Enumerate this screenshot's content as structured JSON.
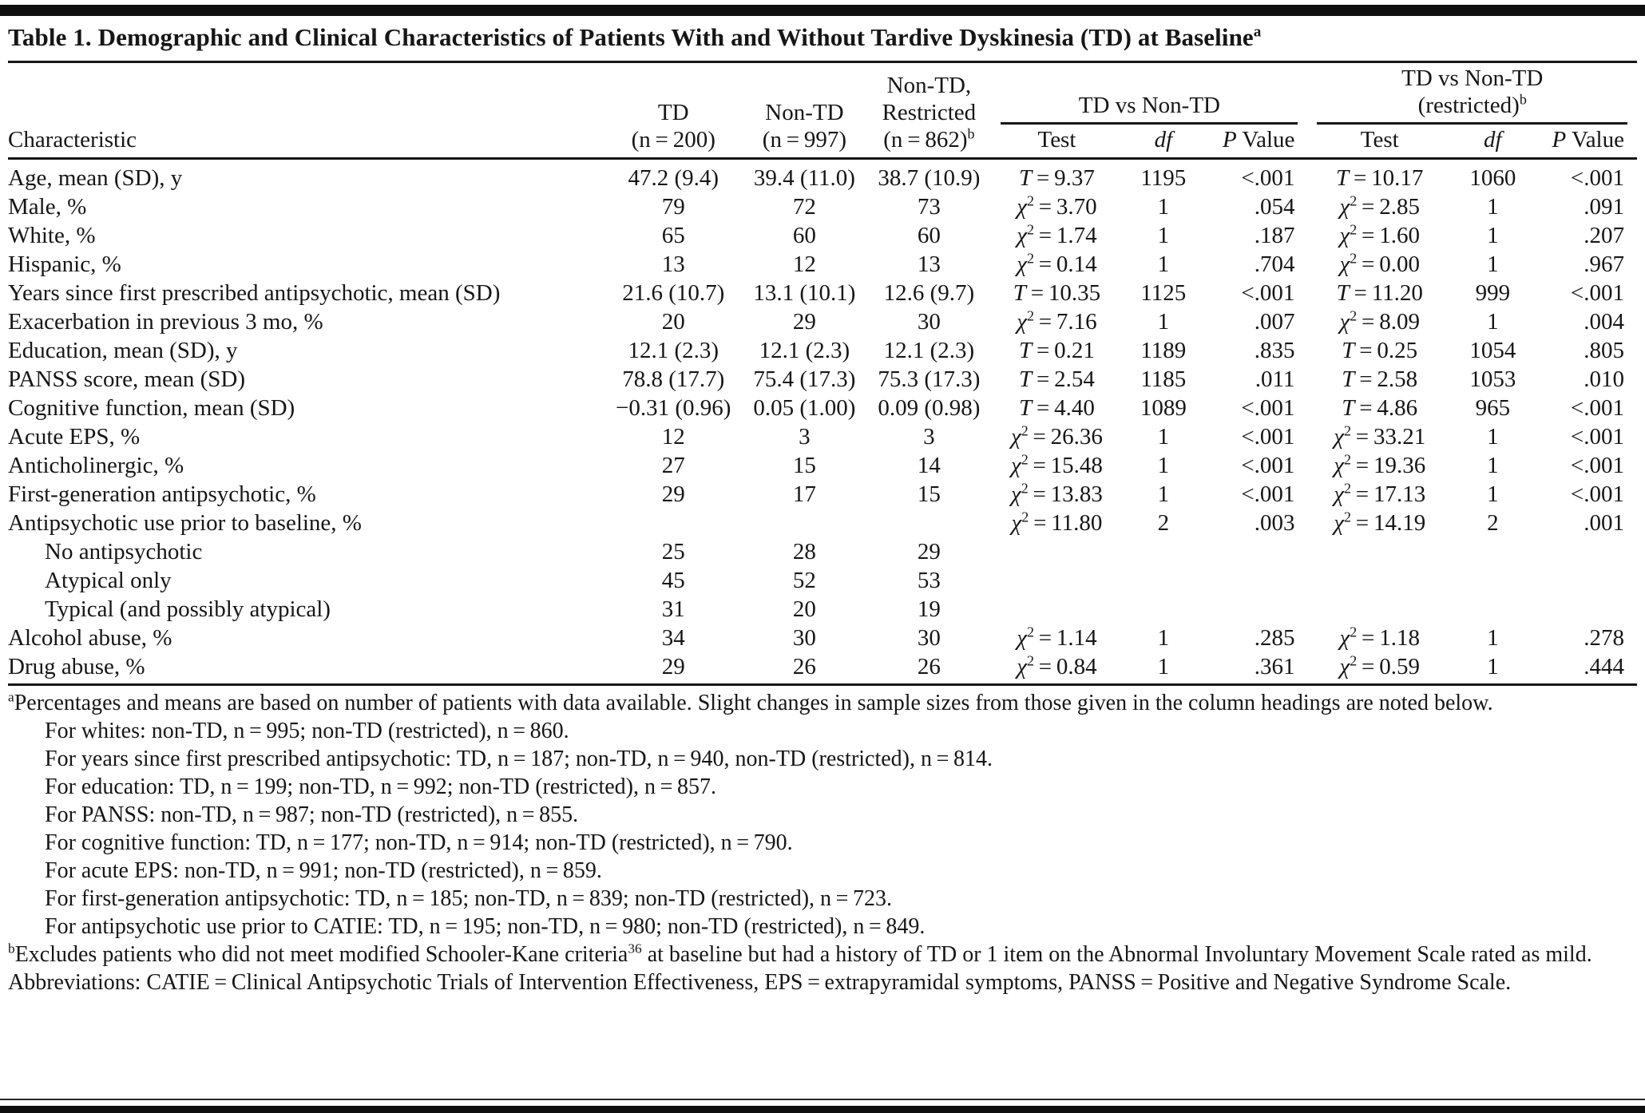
{
  "title": {
    "text": "Table 1. Demographic and Clinical Characteristics of Patients With and Without Tardive Dyskinesia (TD) at Baseline",
    "sup": "a"
  },
  "table": {
    "col_headers": {
      "characteristic": "Characteristic",
      "td_lines": [
        "TD",
        "(n = 200)"
      ],
      "non_td_lines": [
        "Non-TD",
        "(n = 997)"
      ],
      "restricted_lines": [
        "Non-TD,",
        "Restricted",
        "(n = 862)"
      ],
      "restricted_sup": "b",
      "group1_label": "TD vs Non-TD",
      "group2_line1": "TD vs Non-TD",
      "group2_line2": "(restricted)",
      "group2_sup": "b",
      "test_label": "Test",
      "df_label": "df",
      "p_label_italic": "P",
      "p_label_rest": " Value"
    },
    "rows": [
      {
        "label": "Age, mean (SD), y",
        "indent": false,
        "td": "47.2 (9.4)",
        "ntd": "39.4 (11.0)",
        "res": "38.7 (10.9)",
        "s1": {
          "sym": "T",
          "val": "9.37"
        },
        "df1": "1195",
        "p1": "<.001",
        "s2": {
          "sym": "T",
          "val": "10.17"
        },
        "df2": "1060",
        "p2": "<.001"
      },
      {
        "label": "Male, %",
        "indent": false,
        "td": "79",
        "ntd": "72",
        "res": "73",
        "s1": {
          "sym": "χ2",
          "val": "3.70"
        },
        "df1": "1",
        "p1": ".054",
        "s2": {
          "sym": "χ2",
          "val": "2.85"
        },
        "df2": "1",
        "p2": ".091"
      },
      {
        "label": "White, %",
        "indent": false,
        "td": "65",
        "ntd": "60",
        "res": "60",
        "s1": {
          "sym": "χ2",
          "val": "1.74"
        },
        "df1": "1",
        "p1": ".187",
        "s2": {
          "sym": "χ2",
          "val": "1.60"
        },
        "df2": "1",
        "p2": ".207"
      },
      {
        "label": "Hispanic, %",
        "indent": false,
        "td": "13",
        "ntd": "12",
        "res": "13",
        "s1": {
          "sym": "χ2",
          "val": "0.14"
        },
        "df1": "1",
        "p1": ".704",
        "s2": {
          "sym": "χ2",
          "val": "0.00"
        },
        "df2": "1",
        "p2": ".967"
      },
      {
        "label": "Years since first prescribed antipsychotic, mean (SD)",
        "indent": false,
        "td": "21.6 (10.7)",
        "ntd": "13.1 (10.1)",
        "res": "12.6 (9.7)",
        "s1": {
          "sym": "T",
          "val": "10.35"
        },
        "df1": "1125",
        "p1": "<.001",
        "s2": {
          "sym": "T",
          "val": "11.20"
        },
        "df2": "999",
        "p2": "<.001"
      },
      {
        "label": "Exacerbation in previous 3 mo, %",
        "indent": false,
        "td": "20",
        "ntd": "29",
        "res": "30",
        "s1": {
          "sym": "χ2",
          "val": "7.16"
        },
        "df1": "1",
        "p1": ".007",
        "s2": {
          "sym": "χ2",
          "val": "8.09"
        },
        "df2": "1",
        "p2": ".004"
      },
      {
        "label": "Education, mean (SD), y",
        "indent": false,
        "td": "12.1 (2.3)",
        "ntd": "12.1 (2.3)",
        "res": "12.1 (2.3)",
        "s1": {
          "sym": "T",
          "val": "0.21"
        },
        "df1": "1189",
        "p1": ".835",
        "s2": {
          "sym": "T",
          "val": "0.25"
        },
        "df2": "1054",
        "p2": ".805"
      },
      {
        "label": "PANSS score, mean (SD)",
        "indent": false,
        "td": "78.8 (17.7)",
        "ntd": "75.4 (17.3)",
        "res": "75.3 (17.3)",
        "s1": {
          "sym": "T",
          "val": "2.54"
        },
        "df1": "1185",
        "p1": ".011",
        "s2": {
          "sym": "T",
          "val": "2.58"
        },
        "df2": "1053",
        "p2": ".010"
      },
      {
        "label": "Cognitive function, mean (SD)",
        "indent": false,
        "td": "−0.31 (0.96)",
        "ntd": "0.05 (1.00)",
        "res": "0.09 (0.98)",
        "s1": {
          "sym": "T",
          "val": "4.40"
        },
        "df1": "1089",
        "p1": "<.001",
        "s2": {
          "sym": "T",
          "val": "4.86"
        },
        "df2": "965",
        "p2": "<.001"
      },
      {
        "label": "Acute EPS, %",
        "indent": false,
        "td": "12",
        "ntd": "3",
        "res": "3",
        "s1": {
          "sym": "χ2",
          "val": "26.36"
        },
        "df1": "1",
        "p1": "<.001",
        "s2": {
          "sym": "χ2",
          "val": "33.21"
        },
        "df2": "1",
        "p2": "<.001"
      },
      {
        "label": "Anticholinergic, %",
        "indent": false,
        "td": "27",
        "ntd": "15",
        "res": "14",
        "s1": {
          "sym": "χ2",
          "val": "15.48"
        },
        "df1": "1",
        "p1": "<.001",
        "s2": {
          "sym": "χ2",
          "val": "19.36"
        },
        "df2": "1",
        "p2": "<.001"
      },
      {
        "label": "First-generation antipsychotic, %",
        "indent": false,
        "td": "29",
        "ntd": "17",
        "res": "15",
        "s1": {
          "sym": "χ2",
          "val": "13.83"
        },
        "df1": "1",
        "p1": "<.001",
        "s2": {
          "sym": "χ2",
          "val": "17.13"
        },
        "df2": "1",
        "p2": "<.001"
      },
      {
        "label": "Antipsychotic use prior to baseline, %",
        "indent": false,
        "td": "",
        "ntd": "",
        "res": "",
        "s1": {
          "sym": "χ2",
          "val": "11.80"
        },
        "df1": "2",
        "p1": ".003",
        "s2": {
          "sym": "χ2",
          "val": "14.19"
        },
        "df2": "2",
        "p2": ".001"
      },
      {
        "label": "No antipsychotic",
        "indent": true,
        "td": "25",
        "ntd": "28",
        "res": "29",
        "s1": null,
        "df1": "",
        "p1": "",
        "s2": null,
        "df2": "",
        "p2": ""
      },
      {
        "label": "Atypical only",
        "indent": true,
        "td": "45",
        "ntd": "52",
        "res": "53",
        "s1": null,
        "df1": "",
        "p1": "",
        "s2": null,
        "df2": "",
        "p2": ""
      },
      {
        "label": "Typical (and possibly atypical)",
        "indent": true,
        "td": "31",
        "ntd": "20",
        "res": "19",
        "s1": null,
        "df1": "",
        "p1": "",
        "s2": null,
        "df2": "",
        "p2": ""
      },
      {
        "label": "Alcohol abuse, %",
        "indent": false,
        "td": "34",
        "ntd": "30",
        "res": "30",
        "s1": {
          "sym": "χ2",
          "val": "1.14"
        },
        "df1": "1",
        "p1": ".285",
        "s2": {
          "sym": "χ2",
          "val": "1.18"
        },
        "df2": "1",
        "p2": ".278"
      },
      {
        "label": "Drug abuse, %",
        "indent": false,
        "td": "29",
        "ntd": "26",
        "res": "26",
        "s1": {
          "sym": "χ2",
          "val": "0.84"
        },
        "df1": "1",
        "p1": ".361",
        "s2": {
          "sym": "χ2",
          "val": "0.59"
        },
        "df2": "1",
        "p2": ".444"
      }
    ]
  },
  "footnotes": [
    {
      "marker": "a",
      "indent": false,
      "segments": [
        {
          "text": "Percentages and means are based on number of patients with data available. Slight changes in sample sizes from those given in the column headings are noted below."
        }
      ]
    },
    {
      "marker": "",
      "indent": true,
      "segments": [
        {
          "text": "For whites: non-TD, n = 995; non-TD (restricted), n = 860."
        }
      ]
    },
    {
      "marker": "",
      "indent": true,
      "segments": [
        {
          "text": "For years since first prescribed antipsychotic: TD, n = 187; non-TD, n = 940, non-TD (restricted), n = 814."
        }
      ]
    },
    {
      "marker": "",
      "indent": true,
      "segments": [
        {
          "text": "For education: TD, n = 199; non-TD, n = 992; non-TD (restricted), n = 857."
        }
      ]
    },
    {
      "marker": "",
      "indent": true,
      "segments": [
        {
          "text": "For PANSS: non-TD, n = 987; non-TD (restricted), n = 855."
        }
      ]
    },
    {
      "marker": "",
      "indent": true,
      "segments": [
        {
          "text": "For cognitive function: TD, n = 177; non-TD, n = 914; non-TD (restricted), n = 790."
        }
      ]
    },
    {
      "marker": "",
      "indent": true,
      "segments": [
        {
          "text": "For acute EPS: non-TD, n = 991; non-TD (restricted), n = 859."
        }
      ]
    },
    {
      "marker": "",
      "indent": true,
      "segments": [
        {
          "text": "For first-generation antipsychotic: TD, n = 185; non-TD, n = 839; non-TD (restricted), n = 723."
        }
      ]
    },
    {
      "marker": "",
      "indent": true,
      "segments": [
        {
          "text": "For antipsychotic use prior to CATIE: TD, n = 195; non-TD, n = 980; non-TD (restricted), n = 849."
        }
      ]
    },
    {
      "marker": "b",
      "indent": false,
      "segments": [
        {
          "text": "Excludes patients who did not meet modified Schooler-Kane criteria"
        },
        {
          "sup": "36"
        },
        {
          "text": " at baseline but had a history of TD or 1 item on the Abnormal Involuntary Movement Scale rated as mild."
        }
      ]
    },
    {
      "marker": "",
      "indent": false,
      "segments": [
        {
          "text": "Abbreviations: CATIE = Clinical Antipsychotic Trials of Intervention Effectiveness, EPS = extrapyramidal symptoms, PANSS = Positive and Negative Syndrome Scale."
        }
      ]
    }
  ]
}
